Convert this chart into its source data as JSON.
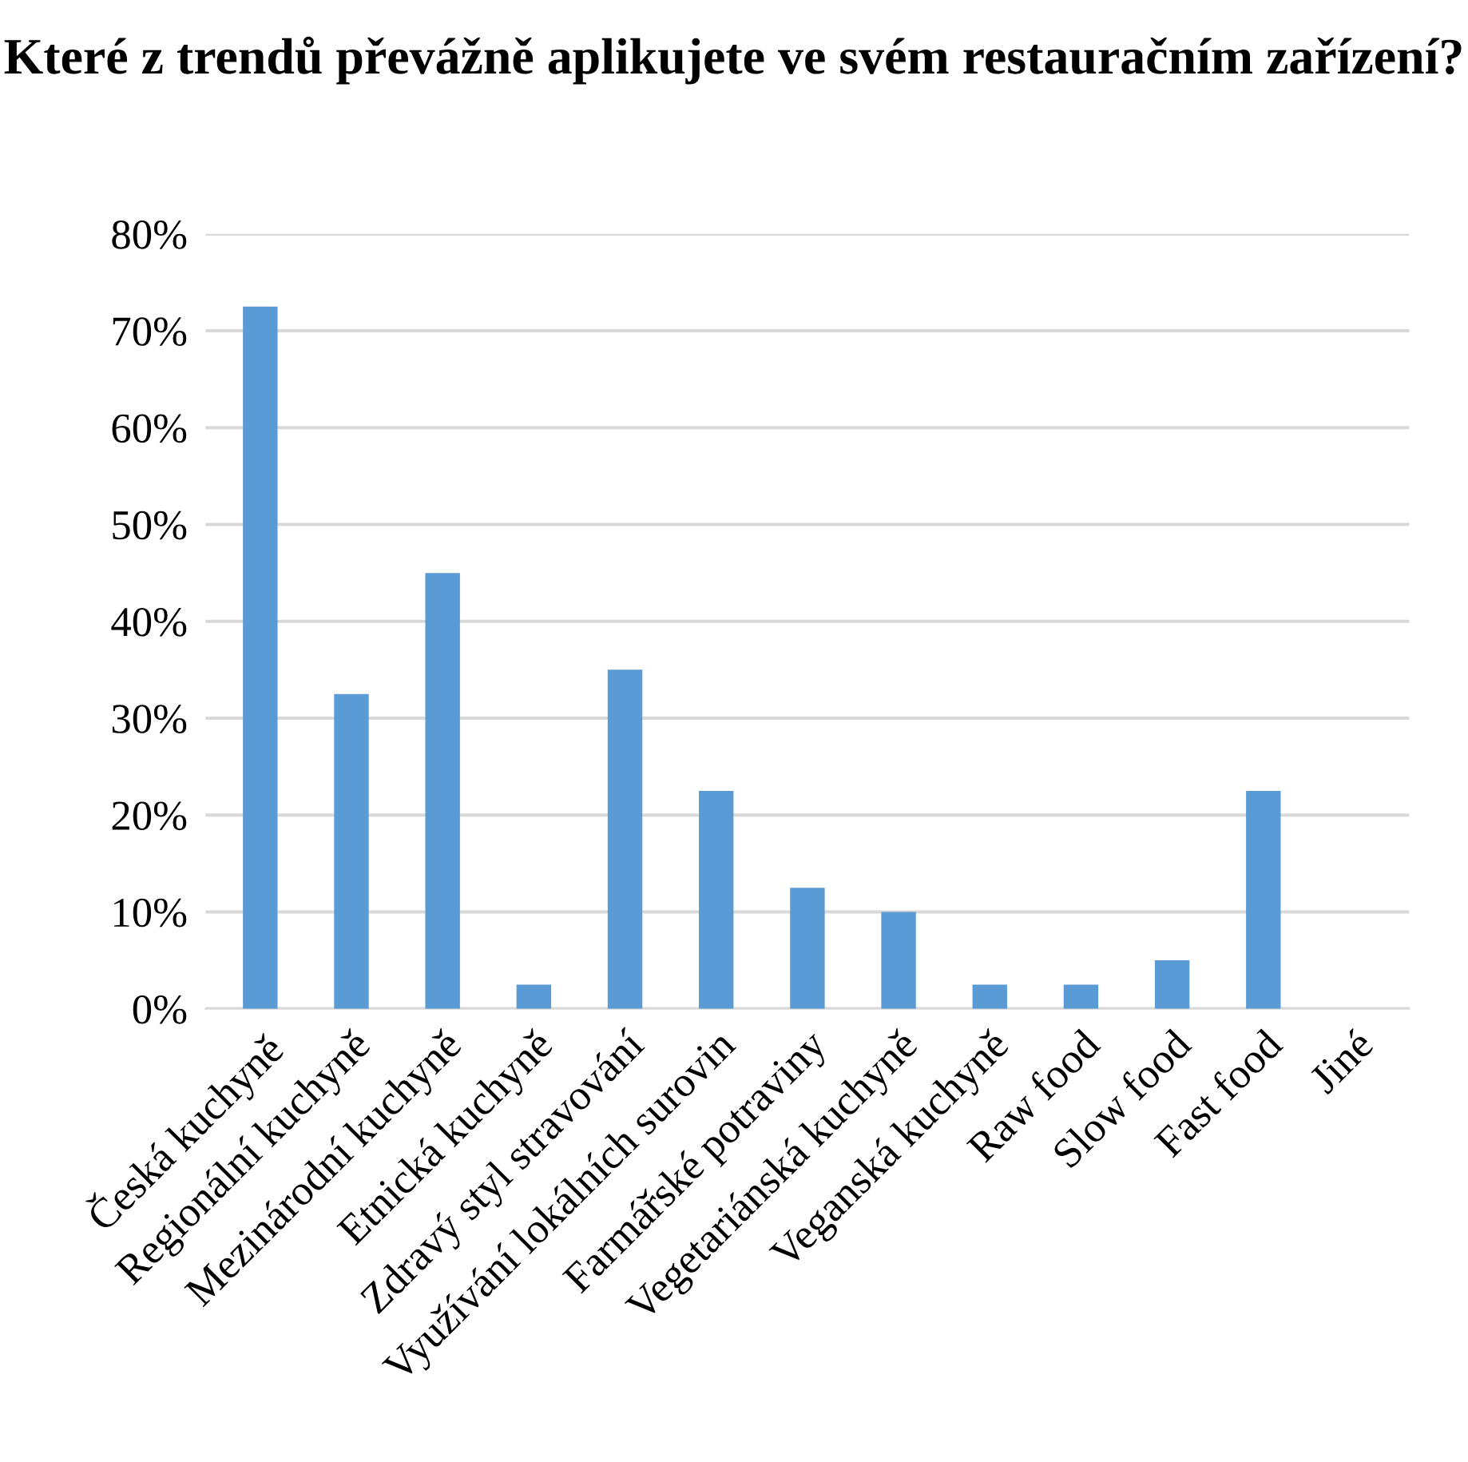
{
  "chart_data": {
    "type": "bar",
    "title": "Které z trendů převážně aplikujete ve svém restauračním zařízení?",
    "categories": [
      "Česká kuchyně",
      "Regionální kuchyně",
      "Mezinárodní kuchyně",
      "Etnická kuchyně",
      "Zdravý styl stravování",
      "Využívání lokálních surovin",
      "Farmářské potraviny",
      "Vegetariánská kuchyně",
      "Veganská kuchyně",
      "Raw food",
      "Slow food",
      "Fast food",
      "Jiné"
    ],
    "values": [
      72.5,
      32.5,
      45,
      2.5,
      35,
      22.5,
      12.5,
      10,
      2.5,
      2.5,
      5,
      22.5,
      0
    ],
    "color": "#5b9bd5",
    "ylim": [
      0,
      80
    ],
    "yticks": [
      {
        "value": 0,
        "label": "0%"
      },
      {
        "value": 10,
        "label": "10%"
      },
      {
        "value": 20,
        "label": "20%"
      },
      {
        "value": 30,
        "label": "30%"
      },
      {
        "value": 40,
        "label": "40%"
      },
      {
        "value": 50,
        "label": "50%"
      },
      {
        "value": 60,
        "label": "60%"
      },
      {
        "value": 70,
        "label": "70%"
      },
      {
        "value": 80,
        "label": "80%"
      }
    ],
    "grid": "y",
    "legend": false
  }
}
